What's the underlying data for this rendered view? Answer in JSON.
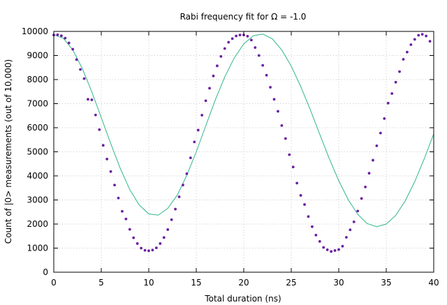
{
  "chart_data": {
    "type": "scatter",
    "title": "Rabi frequency fit for Ω = -1.0",
    "xlabel": "Total duration (ns)",
    "ylabel": "Count of |0> measurements (out of 10,000)",
    "xlim": [
      0,
      40
    ],
    "ylim": [
      0,
      10000
    ],
    "xticks": [
      0,
      5,
      10,
      15,
      20,
      25,
      30,
      35,
      40
    ],
    "yticks": [
      0,
      1000,
      2000,
      3000,
      4000,
      5000,
      6000,
      7000,
      8000,
      9000,
      10000
    ],
    "grid": true,
    "legend": "none",
    "colors": {
      "points": "#6a1fa0",
      "fit": "#2fb58c",
      "grid": "#c8c8c8",
      "axis": "#000000"
    },
    "series": [
      {
        "x": [
          0,
          0.4,
          0.8,
          1.2,
          1.6,
          2.0,
          2.4,
          2.8,
          3.2,
          3.6,
          4.0,
          4.4,
          4.8,
          5.2,
          5.6,
          6.0,
          6.4,
          6.8,
          7.2,
          7.6,
          8.0,
          8.4,
          8.8,
          9.2,
          9.6,
          10.0,
          10.4,
          10.8,
          11.2,
          11.6,
          12.0,
          12.4,
          12.8,
          13.2,
          13.6,
          14.0,
          14.4,
          14.8,
          15.2,
          15.6,
          16.0,
          16.4,
          16.8,
          17.2,
          17.6,
          18.0,
          18.4,
          18.8,
          19.2,
          19.6,
          20.0,
          20.4,
          20.8,
          21.2,
          21.6,
          22.0,
          22.4,
          22.8,
          23.2,
          23.6,
          24.0,
          24.4,
          24.8,
          25.2,
          25.6,
          26.0,
          26.4,
          26.8,
          27.2,
          27.6,
          28.0,
          28.4,
          28.8,
          29.2,
          29.6,
          30.0,
          30.4,
          30.8,
          31.2,
          31.6,
          32.0,
          32.4,
          32.8,
          33.2,
          33.6,
          34.0,
          34.4,
          34.8,
          35.2,
          35.6,
          36.0,
          36.4,
          36.8,
          37.2,
          37.6,
          38.0,
          38.4,
          38.8,
          39.2,
          39.6
        ],
        "y": [
          9850,
          9860,
          9820,
          9720,
          9520,
          9260,
          8830,
          8420,
          8040,
          7180,
          7160,
          6530,
          5920,
          5270,
          4700,
          4180,
          3620,
          3080,
          2530,
          2210,
          1780,
          1430,
          1190,
          1000,
          910,
          890,
          920,
          1010,
          1190,
          1440,
          1770,
          2180,
          2620,
          3130,
          3620,
          4090,
          4750,
          5410,
          5900,
          6520,
          7120,
          7640,
          8150,
          8570,
          8960,
          9290,
          9550,
          9700,
          9810,
          9850,
          9850,
          9800,
          9640,
          9330,
          9000,
          8590,
          8180,
          7680,
          7180,
          6680,
          6090,
          5550,
          4880,
          4370,
          3700,
          3190,
          2810,
          2310,
          1890,
          1540,
          1280,
          1030,
          930,
          860,
          900,
          940,
          1080,
          1450,
          1760,
          2090,
          2540,
          3060,
          3540,
          4110,
          4650,
          5250,
          5780,
          6380,
          7020,
          7420,
          7890,
          8330,
          8840,
          9140,
          9450,
          9670,
          9840,
          9880,
          9810,
          9590
        ]
      },
      {
        "x": [
          0,
          1,
          2,
          3,
          4,
          5,
          6,
          7,
          8,
          9,
          10,
          11,
          12,
          13,
          14,
          15,
          16,
          17,
          18,
          19,
          20,
          21,
          22,
          23,
          24,
          25,
          26,
          27,
          28,
          29,
          30,
          31,
          32,
          33,
          34,
          35,
          36,
          37,
          38,
          39,
          40
        ],
        "y": [
          9860,
          9720,
          9230,
          8460,
          7490,
          6420,
          5340,
          4310,
          3430,
          2790,
          2420,
          2370,
          2650,
          3200,
          4020,
          5000,
          6080,
          7150,
          8110,
          8900,
          9480,
          9820,
          9890,
          9690,
          9230,
          8560,
          7710,
          6750,
          5730,
          4720,
          3800,
          3010,
          2400,
          2020,
          1890,
          2000,
          2360,
          2960,
          3760,
          4710,
          5740
        ]
      }
    ]
  }
}
